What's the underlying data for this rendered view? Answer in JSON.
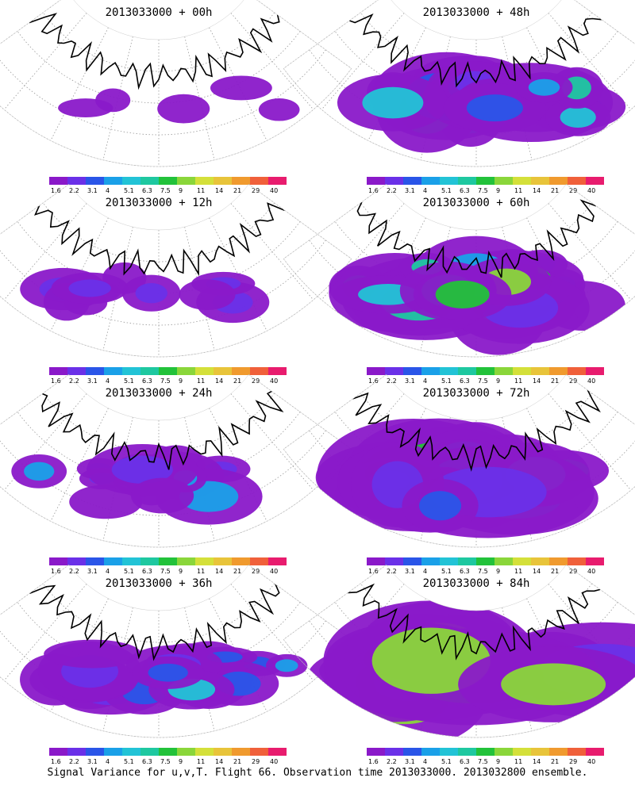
{
  "caption": "Signal Variance for u,v,T. Flight 66. Observation time 2013033000. 2013032800 ensemble.",
  "colorbar": {
    "labels": [
      "1.6",
      "2.2",
      "3.1",
      "4",
      "5.1",
      "6.3",
      "7.5",
      "9",
      "11",
      "14",
      "21",
      "29",
      "40"
    ],
    "colors": [
      "#8a19c9",
      "#6a30e8",
      "#2a55e8",
      "#1aa0e8",
      "#22c3d6",
      "#1ec8a0",
      "#22c23a",
      "#8ad63a",
      "#d4e03a",
      "#e8c43a",
      "#f09a2e",
      "#f0603a",
      "#e81c6e"
    ]
  },
  "panels": [
    {
      "title": "2013033000 + 00h",
      "level": 0
    },
    {
      "title": "2013033000 + 48h",
      "level": 4
    },
    {
      "title": "2013033000 + 12h",
      "level": 1
    },
    {
      "title": "2013033000 + 60h",
      "level": 5
    },
    {
      "title": "2013033000 + 24h",
      "level": 2
    },
    {
      "title": "2013033000 + 72h",
      "level": 6
    },
    {
      "title": "2013033000 + 36h",
      "level": 3
    },
    {
      "title": "2013033000 + 84h",
      "level": 7
    }
  ]
}
